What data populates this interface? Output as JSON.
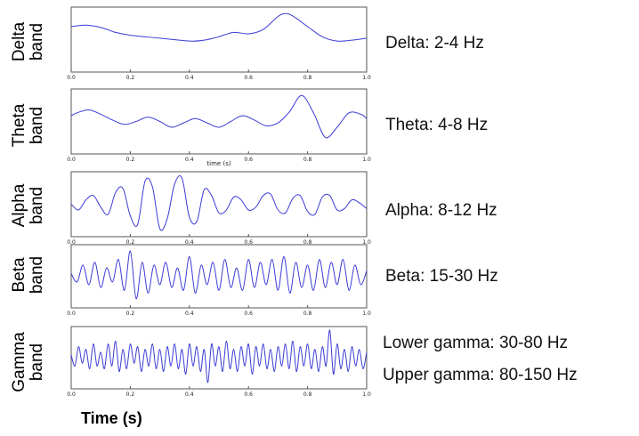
{
  "chart_data": {
    "type": "line",
    "xlabel": "Time (s)",
    "x_range": [
      0.0,
      1.0
    ],
    "x_ticks": [
      "0.0",
      "0.2",
      "0.4",
      "0.6",
      "0.8",
      "1.0"
    ],
    "grid": false,
    "line_color": "#3b3bd6",
    "panels": [
      {
        "ylabel_lines": [
          "Delta",
          "band"
        ],
        "band_label": "Delta: 2-4 Hz",
        "series": {
          "x": [
            0.0,
            0.05,
            0.1,
            0.15,
            0.2,
            0.3,
            0.4,
            0.45,
            0.5,
            0.55,
            0.6,
            0.65,
            0.7,
            0.73,
            0.76,
            0.8,
            0.85,
            0.9,
            0.95,
            1.0
          ],
          "y": [
            0.45,
            0.5,
            0.42,
            0.25,
            0.15,
            0.05,
            -0.05,
            -0.02,
            0.1,
            0.25,
            0.2,
            0.35,
            0.8,
            0.9,
            0.75,
            0.45,
            0.1,
            -0.05,
            -0.02,
            0.05
          ]
        }
      },
      {
        "ylabel_lines": [
          "Theta",
          "band"
        ],
        "band_label": "Theta: 4-8 Hz",
        "extra_text": "time (s)",
        "series": {
          "x": [
            0.0,
            0.02,
            0.06,
            0.1,
            0.14,
            0.18,
            0.22,
            0.26,
            0.3,
            0.34,
            0.38,
            0.42,
            0.46,
            0.5,
            0.54,
            0.58,
            0.62,
            0.66,
            0.7,
            0.74,
            0.78,
            0.82,
            0.86,
            0.9,
            0.94,
            0.98,
            1.0
          ],
          "y": [
            0.2,
            0.3,
            0.4,
            0.25,
            0.05,
            -0.1,
            0.0,
            0.15,
            0.0,
            -0.2,
            -0.05,
            0.1,
            -0.05,
            -0.2,
            0.0,
            0.2,
            0.05,
            -0.15,
            -0.05,
            0.35,
            0.9,
            0.3,
            -0.55,
            -0.2,
            0.3,
            0.25,
            0.1
          ]
        }
      },
      {
        "ylabel_lines": [
          "Alpha",
          "band"
        ],
        "band_label": "Alpha: 8-12 Hz",
        "series": {
          "x": [
            0.0,
            0.025,
            0.05,
            0.075,
            0.1,
            0.125,
            0.15,
            0.175,
            0.2,
            0.225,
            0.25,
            0.275,
            0.3,
            0.325,
            0.35,
            0.375,
            0.4,
            0.425,
            0.45,
            0.475,
            0.5,
            0.525,
            0.55,
            0.575,
            0.6,
            0.625,
            0.65,
            0.675,
            0.7,
            0.725,
            0.75,
            0.775,
            0.8,
            0.825,
            0.85,
            0.875,
            0.9,
            0.925,
            0.95,
            0.975,
            1.0
          ],
          "y": [
            0.0,
            -0.2,
            0.15,
            0.3,
            -0.1,
            -0.35,
            0.4,
            0.55,
            -0.4,
            -0.7,
            0.8,
            0.6,
            -0.85,
            -0.5,
            0.7,
            0.9,
            -0.45,
            -0.6,
            0.5,
            0.3,
            -0.3,
            -0.2,
            0.25,
            0.15,
            -0.2,
            -0.1,
            0.3,
            0.35,
            -0.2,
            -0.3,
            0.2,
            0.3,
            -0.25,
            -0.35,
            0.25,
            0.3,
            -0.2,
            -0.15,
            0.15,
            0.05,
            -0.15
          ]
        }
      },
      {
        "ylabel_lines": [
          "Beta",
          "band"
        ],
        "band_label": "Beta: 15-30 Hz",
        "series": {
          "x": [
            0.0,
            0.02,
            0.04,
            0.06,
            0.08,
            0.1,
            0.12,
            0.14,
            0.16,
            0.18,
            0.2,
            0.22,
            0.24,
            0.26,
            0.28,
            0.3,
            0.32,
            0.34,
            0.36,
            0.38,
            0.4,
            0.42,
            0.44,
            0.46,
            0.48,
            0.5,
            0.52,
            0.54,
            0.56,
            0.58,
            0.6,
            0.62,
            0.64,
            0.66,
            0.68,
            0.7,
            0.72,
            0.74,
            0.76,
            0.78,
            0.8,
            0.82,
            0.84,
            0.86,
            0.88,
            0.9,
            0.92,
            0.94,
            0.96,
            0.98,
            1.0
          ],
          "y": [
            0.1,
            -0.2,
            0.4,
            -0.3,
            0.5,
            -0.4,
            0.3,
            -0.2,
            0.6,
            -0.5,
            0.9,
            -0.8,
            0.5,
            -0.6,
            0.4,
            -0.3,
            0.5,
            -0.4,
            0.3,
            -0.5,
            0.7,
            -0.6,
            0.4,
            -0.3,
            0.5,
            -0.5,
            0.6,
            -0.4,
            0.3,
            -0.5,
            0.6,
            -0.4,
            0.5,
            -0.3,
            0.6,
            -0.5,
            0.7,
            -0.6,
            0.5,
            -0.4,
            0.4,
            -0.5,
            0.6,
            -0.4,
            0.5,
            -0.3,
            0.6,
            -0.5,
            0.4,
            -0.3,
            0.2
          ]
        }
      },
      {
        "ylabel_lines": [
          "Gamma",
          "band"
        ],
        "band_labels": [
          "Lower gamma: 30-80 Hz",
          "Upper gamma: 80-150 Hz"
        ],
        "series": {
          "x": [
            0.0,
            0.0125,
            0.025,
            0.0375,
            0.05,
            0.0625,
            0.075,
            0.0875,
            0.1,
            0.1125,
            0.125,
            0.1375,
            0.15,
            0.1625,
            0.175,
            0.1875,
            0.2,
            0.2125,
            0.225,
            0.2375,
            0.25,
            0.2625,
            0.275,
            0.2875,
            0.3,
            0.3125,
            0.325,
            0.3375,
            0.35,
            0.3625,
            0.375,
            0.3875,
            0.4,
            0.4125,
            0.425,
            0.4375,
            0.45,
            0.4625,
            0.475,
            0.4875,
            0.5,
            0.5125,
            0.525,
            0.5375,
            0.55,
            0.5625,
            0.575,
            0.5875,
            0.6,
            0.6125,
            0.625,
            0.6375,
            0.65,
            0.6625,
            0.675,
            0.6875,
            0.7,
            0.7125,
            0.725,
            0.7375,
            0.75,
            0.7625,
            0.775,
            0.7875,
            0.8,
            0.8125,
            0.825,
            0.8375,
            0.85,
            0.8625,
            0.875,
            0.8875,
            0.9,
            0.9125,
            0.925,
            0.9375,
            0.95,
            0.9625,
            0.975,
            0.9875,
            1.0
          ],
          "y": [
            0.1,
            -0.3,
            0.4,
            -0.2,
            0.3,
            -0.4,
            0.5,
            -0.3,
            0.2,
            -0.4,
            0.5,
            -0.3,
            0.6,
            -0.5,
            0.3,
            -0.4,
            0.5,
            -0.2,
            0.4,
            -0.5,
            0.3,
            -0.3,
            0.5,
            -0.4,
            0.3,
            -0.5,
            0.4,
            -0.3,
            0.5,
            -0.4,
            0.3,
            -0.6,
            0.5,
            -0.3,
            0.4,
            -0.5,
            0.3,
            -0.9,
            0.5,
            -0.3,
            0.4,
            -0.5,
            0.6,
            -0.4,
            0.3,
            -0.5,
            0.4,
            -0.3,
            0.5,
            -0.6,
            0.4,
            -0.3,
            0.5,
            -0.4,
            0.3,
            -0.5,
            0.4,
            -0.3,
            0.5,
            -0.4,
            0.6,
            -0.5,
            0.4,
            -0.3,
            0.5,
            -0.4,
            0.3,
            -0.5,
            0.4,
            -0.3,
            1.0,
            -0.6,
            0.5,
            -0.4,
            0.3,
            -0.5,
            0.4,
            -0.3,
            0.3,
            -0.4,
            0.2
          ]
        }
      }
    ]
  }
}
